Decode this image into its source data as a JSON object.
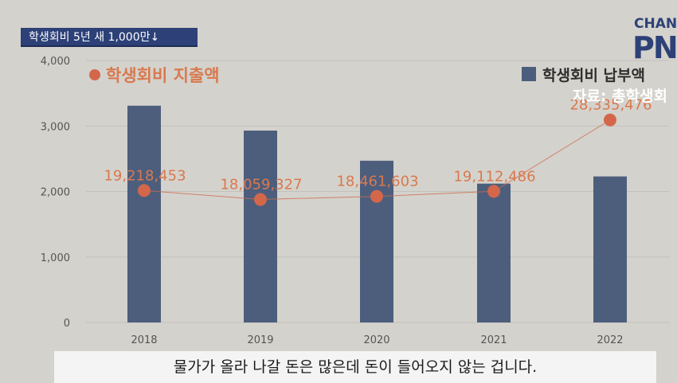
{
  "header": {
    "tag": "학생회비 5년 새 1,000만↓"
  },
  "logo": {
    "line1": "CHAN",
    "line2": "PN"
  },
  "subtitle": "물가가 올라 나갈 돈은 많은데 돈이 들어오지 않는 겁니다.",
  "colors": {
    "bar": "#4d5e7d",
    "line": "#c96d4f",
    "dot": "#d4674a",
    "label": "#d9794f",
    "background": "#d4d2cc"
  },
  "chart_data": {
    "type": "bar",
    "categories": [
      "2018",
      "2019",
      "2020",
      "2021",
      "2022"
    ],
    "ylim": [
      0,
      4000
    ],
    "yticks": [
      "0",
      "1,000",
      "2,000",
      "3,000",
      "4,000"
    ],
    "grid": true,
    "legend_position": "top",
    "series": [
      {
        "name": "학생회비 납부액",
        "type": "bar",
        "values": [
          3310,
          2930,
          2470,
          2120,
          2230
        ]
      },
      {
        "name": "학생회비 지출액",
        "type": "line",
        "values": [
          19218453,
          18059327,
          18461603,
          19112486,
          28335476
        ],
        "labels": [
          "19,218,453",
          "18,059,327",
          "18,461,603",
          "19,112,486",
          "28,335,476"
        ]
      }
    ],
    "annotations": [
      "자료: 총학생회"
    ]
  }
}
